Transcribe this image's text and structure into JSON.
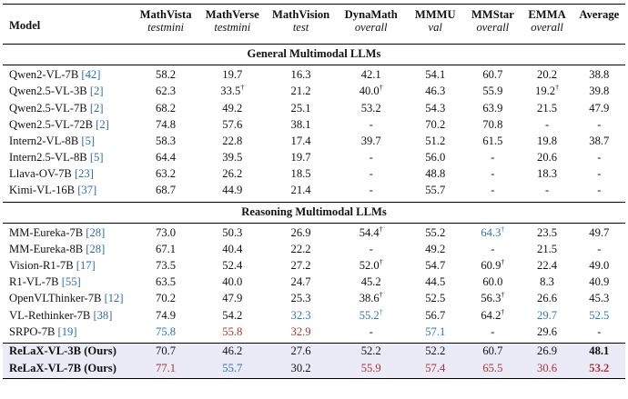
{
  "header": {
    "model": "Model",
    "columns": [
      {
        "name": "MathVista",
        "sub": "testmini"
      },
      {
        "name": "MathVerse",
        "sub": "testmini"
      },
      {
        "name": "MathVision",
        "sub": "test"
      },
      {
        "name": "DynaMath",
        "sub": "overall"
      },
      {
        "name": "MMMU",
        "sub": "val"
      },
      {
        "name": "MMStar",
        "sub": "overall"
      },
      {
        "name": "EMMA",
        "sub": "overall"
      },
      {
        "name": "Average",
        "sub": ""
      }
    ]
  },
  "sections": [
    {
      "title": "General Multimodal LLMs",
      "rows": [
        {
          "model": "Qwen2-VL-7B ",
          "ref": "[42]",
          "values": [
            "58.2",
            "19.7",
            "16.3",
            "42.1",
            "54.1",
            "60.7",
            "20.2",
            "38.8"
          ]
        },
        {
          "model": "Qwen2.5-VL-3B ",
          "ref": "[2]",
          "values": [
            "62.3",
            "33.5",
            "21.2",
            "40.0",
            "46.3",
            "55.9",
            "19.2",
            "39.8"
          ]
        },
        {
          "model": "Qwen2.5-VL-7B ",
          "ref": "[2]",
          "values": [
            "68.2",
            "49.2",
            "25.1",
            "53.2",
            "54.3",
            "63.9",
            "21.5",
            "47.9"
          ]
        },
        {
          "model": "Qwen2.5-VL-72B ",
          "ref": "[2]",
          "values": [
            "74.8",
            "57.6",
            "38.1",
            "-",
            "70.2",
            "70.8",
            "-",
            "-"
          ]
        },
        {
          "model": "Intern2-VL-8B ",
          "ref": "[5]",
          "values": [
            "58.3",
            "22.8",
            "17.4",
            "39.7",
            "51.2",
            "61.5",
            "19.8",
            "38.7"
          ]
        },
        {
          "model": "Intern2.5-VL-8B ",
          "ref": "[5]",
          "values": [
            "64.4",
            "39.5",
            "19.7",
            "-",
            "56.0",
            "-",
            "20.6",
            "-"
          ]
        },
        {
          "model": "Llava-OV-7B ",
          "ref": "[23]",
          "values": [
            "63.2",
            "26.2",
            "18.5",
            "-",
            "48.8",
            "-",
            "18.3",
            "-"
          ]
        },
        {
          "model": "Kimi-VL-16B ",
          "ref": "[37]",
          "values": [
            "68.7",
            "44.9",
            "21.4",
            "-",
            "55.7",
            "-",
            "-",
            "-"
          ]
        }
      ]
    },
    {
      "title": "Reasoning Multimodal LLMs",
      "rows": [
        {
          "model": "MM-Eureka-7B ",
          "ref": "[28]",
          "values": [
            "73.0",
            "50.3",
            "26.9",
            "54.4",
            "55.2",
            "64.3",
            "23.5",
            "49.7"
          ]
        },
        {
          "model": "MM-Eureka-8B ",
          "ref": "[28]",
          "values": [
            "67.1",
            "40.4",
            "22.2",
            "-",
            "49.2",
            "-",
            "21.5",
            "-"
          ]
        },
        {
          "model": "Vision-R1-7B ",
          "ref": "[17]",
          "values": [
            "73.5",
            "52.4",
            "27.2",
            "52.0",
            "54.7",
            "60.9",
            "22.4",
            "49.0"
          ]
        },
        {
          "model": "R1-VL-7B ",
          "ref": "[55]",
          "values": [
            "63.5",
            "40.0",
            "24.7",
            "45.2",
            "44.5",
            "60.0",
            "8.3",
            "40.9"
          ]
        },
        {
          "model": "OpenVLThinker-7B ",
          "ref": "[12]",
          "values": [
            "70.2",
            "47.9",
            "25.3",
            "38.6",
            "52.5",
            "56.3",
            "26.6",
            "45.3"
          ]
        },
        {
          "model": "VL-Rethinker-7B ",
          "ref": "[38]",
          "values": [
            "74.9",
            "54.2",
            "32.3",
            "55.2",
            "56.7",
            "64.2",
            "29.7",
            "52.5"
          ]
        },
        {
          "model": "SRPO-7B ",
          "ref": "[19]",
          "values": [
            "75.8",
            "55.8",
            "32.9",
            "-",
            "57.1",
            "-",
            "29.6",
            "-"
          ]
        }
      ]
    }
  ],
  "ours": [
    {
      "model": "ReLaX-VL-3B (Ours)",
      "values": [
        "70.7",
        "46.2",
        "27.6",
        "52.2",
        "52.2",
        "60.7",
        "26.9",
        "48.1"
      ]
    },
    {
      "model": "ReLaX-VL-7B (Ours)",
      "values": [
        "77.1",
        "55.7",
        "30.2",
        "55.9",
        "57.4",
        "65.5",
        "30.6",
        "53.2"
      ]
    }
  ],
  "marks": {
    "dagger": "†"
  },
  "colors": {
    "blue": "#2a74bd",
    "red": "#b13131",
    "ref": "#2c6bb0",
    "highlight": "#ebebf7"
  }
}
